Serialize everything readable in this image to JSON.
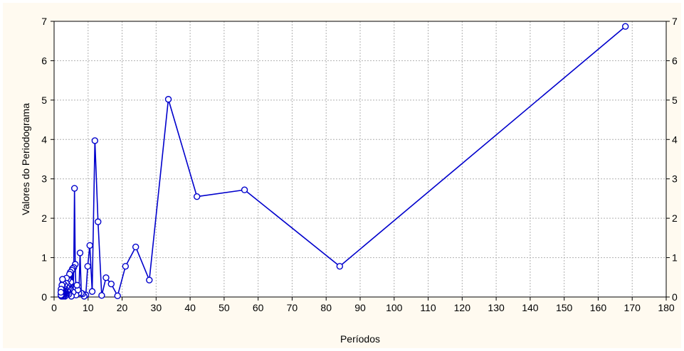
{
  "chart_data": {
    "type": "line",
    "title": "",
    "xlabel": "Períodos",
    "ylabel": "Valores do Periodograma",
    "xlim": [
      0,
      180
    ],
    "ylim": [
      0,
      7
    ],
    "x_ticks": [
      "0",
      "10",
      "20",
      "30",
      "40",
      "50",
      "60",
      "70",
      "80",
      "90",
      "100",
      "110",
      "120",
      "130",
      "140",
      "150",
      "160",
      "170",
      "180"
    ],
    "y_ticks": [
      "0",
      "1",
      "2",
      "3",
      "4",
      "5",
      "6",
      "7"
    ],
    "grid": true,
    "right_y_axis": true,
    "series": [
      {
        "color": "#0000cc",
        "marker": "open-circle",
        "x": [
          168.0,
          84.0,
          56.0,
          42.0,
          33.6,
          28.0,
          24.0,
          21.0,
          18.67,
          16.8,
          15.27,
          14.0,
          12.92,
          12.0,
          11.2,
          10.5,
          9.88,
          9.33,
          8.84,
          8.4,
          8.0,
          7.64,
          7.3,
          7.0,
          6.72,
          6.46,
          6.22,
          6.0,
          5.79,
          5.6,
          5.42,
          5.25,
          5.09,
          4.94,
          4.8,
          4.67,
          4.54,
          4.42,
          4.31,
          4.2,
          4.1,
          4.0,
          3.91,
          3.82,
          3.73,
          3.65,
          3.57,
          3.5,
          3.43,
          3.36,
          3.29,
          3.23,
          3.17,
          3.11,
          3.05,
          3.0,
          2.95,
          2.9,
          2.85,
          2.8,
          2.75,
          2.71,
          2.67,
          2.63,
          2.58,
          2.55,
          2.51,
          2.47,
          2.43,
          2.4,
          2.37,
          2.33,
          2.3,
          2.27,
          2.24,
          2.21,
          2.18,
          2.15,
          2.13,
          2.1,
          2.07,
          2.05,
          2.02,
          2.0
        ],
        "y": [
          6.87,
          0.78,
          2.72,
          2.55,
          5.02,
          0.43,
          1.27,
          0.78,
          0.03,
          0.33,
          0.49,
          0.04,
          1.91,
          3.97,
          0.14,
          1.31,
          0.78,
          0.05,
          0.02,
          0.08,
          0.1,
          1.12,
          0.1,
          0.18,
          0.3,
          0.05,
          0.83,
          2.76,
          0.75,
          0.12,
          0.72,
          0.68,
          0.02,
          0.38,
          0.63,
          0.2,
          0.58,
          0.1,
          0.07,
          0.2,
          0.45,
          0.3,
          0.15,
          0.08,
          0.25,
          0.48,
          0.35,
          0.1,
          0.05,
          0.2,
          0.12,
          0.02,
          0.15,
          0.3,
          0.18,
          0.06,
          0.1,
          0.03,
          0.22,
          0.12,
          0.05,
          0.18,
          0.1,
          0.35,
          0.02,
          0.08,
          0.15,
          0.45,
          0.2,
          0.05,
          0.1,
          0.12,
          0.3,
          0.04,
          0.08,
          0.18,
          0.02,
          0.1,
          0.06,
          0.15,
          0.03,
          0.2,
          0.05,
          0.12
        ]
      }
    ]
  }
}
